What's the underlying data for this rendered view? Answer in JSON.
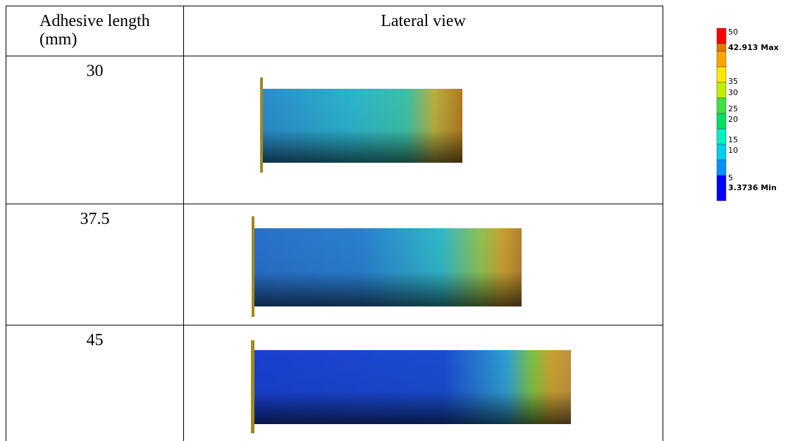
{
  "table": {
    "header": [
      "Adhesive length (mm)",
      "Lateral view"
    ],
    "rows": [
      [
        "30"
      ],
      [
        "37.5"
      ],
      [
        "45"
      ]
    ]
  },
  "legend": {
    "labels": [
      "50",
      "42.913 Max",
      "35",
      "30",
      "25",
      "20",
      "15",
      "10",
      "5",
      "3.3736 Min"
    ]
  }
}
